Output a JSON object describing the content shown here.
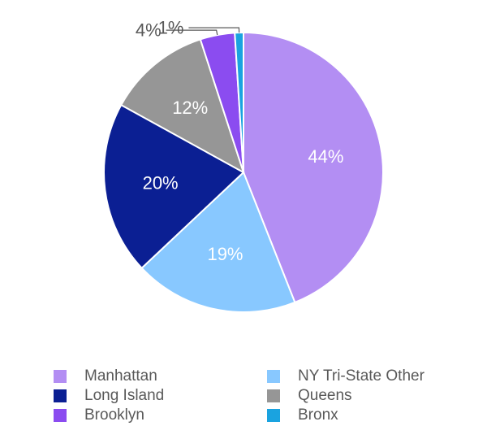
{
  "chart_data": {
    "type": "pie",
    "title": "",
    "categories": [
      "Manhattan",
      "NY Tri-State Other",
      "Long Island",
      "Queens",
      "Brooklyn",
      "Bronx"
    ],
    "values": [
      44,
      19,
      20,
      12,
      4,
      1
    ],
    "value_labels": [
      "44%",
      "19%",
      "20%",
      "12%",
      "4%",
      "1%"
    ],
    "colors": [
      "#b38ef3",
      "#88c8ff",
      "#0b1f93",
      "#969696",
      "#8b4cf0",
      "#1aa3e0"
    ],
    "label_colors": [
      "#ffffff",
      "#ffffff",
      "#ffffff",
      "#ffffff",
      "#595959",
      "#595959"
    ],
    "label_placement": [
      "inside",
      "inside",
      "inside",
      "inside",
      "outside",
      "outside"
    ],
    "start_angle": "12 o'clock",
    "direction": "clockwise",
    "legend_position": "bottom",
    "legend_columns": 2
  }
}
